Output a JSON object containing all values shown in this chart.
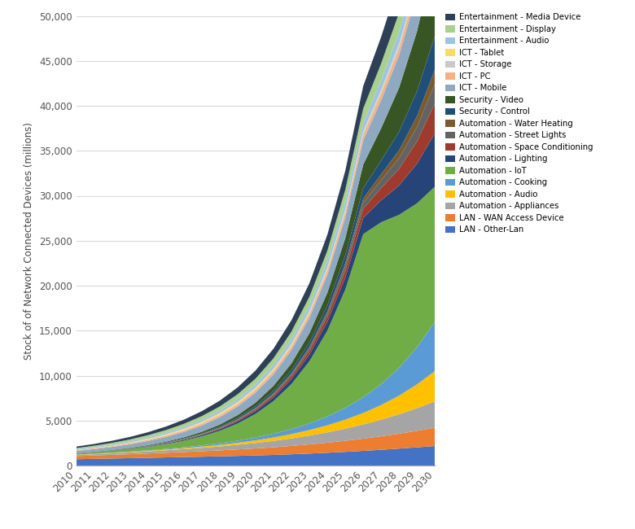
{
  "years": [
    2010,
    2011,
    2012,
    2013,
    2014,
    2015,
    2016,
    2017,
    2018,
    2019,
    2020,
    2021,
    2022,
    2023,
    2024,
    2025,
    2026,
    2027,
    2028,
    2029,
    2030
  ],
  "series": {
    "LAN - Other-Lan": [
      700,
      740,
      780,
      820,
      860,
      900,
      940,
      980,
      1020,
      1070,
      1120,
      1180,
      1250,
      1330,
      1420,
      1520,
      1630,
      1750,
      1880,
      2020,
      2170
    ],
    "LAN - WAN Access Device": [
      350,
      380,
      410,
      440,
      480,
      520,
      560,
      610,
      660,
      720,
      780,
      850,
      930,
      1020,
      1120,
      1230,
      1360,
      1500,
      1660,
      1840,
      2040
    ],
    "Automation - Appliances": [
      120,
      140,
      165,
      195,
      230,
      270,
      320,
      375,
      440,
      515,
      605,
      710,
      835,
      980,
      1150,
      1350,
      1580,
      1850,
      2160,
      2520,
      2930
    ],
    "Automation - Audio": [
      25,
      32,
      40,
      52,
      67,
      86,
      110,
      141,
      180,
      230,
      294,
      375,
      479,
      611,
      781,
      997,
      1272,
      1623,
      2071,
      2642,
      3370
    ],
    "Automation - Cooking": [
      18,
      24,
      32,
      42,
      56,
      74,
      99,
      132,
      176,
      234,
      312,
      416,
      554,
      738,
      984,
      1311,
      1747,
      2329,
      3103,
      4135,
      5510
    ],
    "Automation - IoT": [
      100,
      140,
      195,
      270,
      375,
      520,
      720,
      1000,
      1380,
      1905,
      2630,
      3630,
      5010,
      6910,
      9530,
      13150,
      18140,
      18000,
      17000,
      16000,
      15000
    ],
    "Automation - Lighting": [
      15,
      20,
      27,
      37,
      50,
      68,
      92,
      124,
      167,
      225,
      303,
      408,
      550,
      740,
      996,
      1341,
      1806,
      2432,
      3275,
      4409,
      5936
    ],
    "Automation - Space Conditioning": [
      8,
      11,
      15,
      20,
      27,
      37,
      50,
      68,
      92,
      125,
      169,
      228,
      308,
      415,
      560,
      755,
      1017,
      1370,
      1846,
      2488,
      3351
    ],
    "Automation - Street Lights": [
      5,
      7,
      10,
      13,
      18,
      24,
      33,
      44,
      60,
      81,
      109,
      147,
      198,
      267,
      360,
      485,
      654,
      881,
      1187,
      1599,
      2155
    ],
    "Automation - Water Heating": [
      4,
      5,
      7,
      10,
      13,
      18,
      24,
      33,
      44,
      60,
      81,
      109,
      147,
      198,
      267,
      360,
      485,
      654,
      881,
      1187,
      1599
    ],
    "Security - Control": [
      10,
      13,
      18,
      24,
      32,
      43,
      58,
      78,
      105,
      142,
      191,
      257,
      346,
      466,
      628,
      846,
      1140,
      1535,
      2068,
      2784,
      3750
    ],
    "Security - Video": [
      18,
      25,
      34,
      47,
      64,
      87,
      119,
      162,
      221,
      301,
      410,
      559,
      762,
      1039,
      1416,
      1931,
      2632,
      3588,
      4889,
      6665,
      9087
    ],
    "ICT - Mobile": [
      250,
      290,
      336,
      390,
      452,
      524,
      608,
      705,
      818,
      949,
      1100,
      1276,
      1480,
      1717,
      1991,
      2310,
      2680,
      3109,
      3606,
      4183,
      4852
    ],
    "ICT - PC": [
      70,
      80,
      91,
      104,
      118,
      135,
      154,
      176,
      201,
      229,
      261,
      298,
      340,
      388,
      443,
      505,
      577,
      658,
      751,
      857,
      978
    ],
    "ICT - Storage": [
      25,
      29,
      34,
      39,
      45,
      53,
      61,
      71,
      82,
      95,
      110,
      128,
      148,
      172,
      199,
      231,
      268,
      311,
      361,
      419,
      486
    ],
    "ICT - Tablet": [
      8,
      18,
      35,
      60,
      90,
      120,
      145,
      165,
      178,
      185,
      188,
      189,
      188,
      185,
      181,
      176,
      170,
      164,
      157,
      150,
      143
    ],
    "Entertainment - Audio": [
      80,
      94,
      110,
      128,
      150,
      175,
      204,
      238,
      277,
      323,
      376,
      438,
      511,
      595,
      693,
      808,
      941,
      1097,
      1278,
      1489,
      1734
    ],
    "Entertainment - Display": [
      130,
      153,
      179,
      210,
      245,
      287,
      335,
      392,
      458,
      535,
      625,
      730,
      853,
      997,
      1164,
      1361,
      1590,
      1858,
      2173,
      2541,
      2973
    ],
    "Entertainment - Media Device": [
      170,
      200,
      236,
      279,
      330,
      390,
      461,
      546,
      646,
      764,
      905,
      1071,
      1268,
      1502,
      1779,
      2108,
      2497,
      2960,
      3509,
      4160,
      4934
    ]
  },
  "colors": {
    "LAN - Other-Lan": "#4472C4",
    "LAN - WAN Access Device": "#ED7D31",
    "Automation - Appliances": "#A5A5A5",
    "Automation - Audio": "#FFC000",
    "Automation - Cooking": "#5B9BD5",
    "Automation - IoT": "#70AD47",
    "Automation - Lighting": "#264478",
    "Automation - Space Conditioning": "#9E3B2C",
    "Automation - Street Lights": "#636363",
    "Automation - Water Heating": "#7B5B2E",
    "Security - Control": "#1F4E79",
    "Security - Video": "#375623",
    "ICT - Mobile": "#8EA9C1",
    "ICT - PC": "#F4B183",
    "ICT - Storage": "#C9C9C9",
    "ICT - Tablet": "#FFD966",
    "Entertainment - Audio": "#9DC3E6",
    "Entertainment - Display": "#A9D18E",
    "Entertainment - Media Device": "#2E4057"
  },
  "legend_order": [
    "Entertainment - Media Device",
    "Entertainment - Display",
    "Entertainment - Audio",
    "ICT - Tablet",
    "ICT - Storage",
    "ICT - PC",
    "ICT - Mobile",
    "Security - Video",
    "Security - Control",
    "Automation - Water Heating",
    "Automation - Street Lights",
    "Automation - Space Conditioning",
    "Automation - Lighting",
    "Automation - IoT",
    "Automation - Cooking",
    "Automation - Audio",
    "Automation - Appliances",
    "LAN - WAN Access Device",
    "LAN - Other-Lan"
  ],
  "ylabel": "Stock of of Network Connected Devices (millions)",
  "ylim": [
    0,
    50000
  ],
  "yticks": [
    0,
    5000,
    10000,
    15000,
    20000,
    25000,
    30000,
    35000,
    40000,
    45000,
    50000
  ],
  "background_color": "#FFFFFF",
  "grid_color": "#D9D9D9"
}
